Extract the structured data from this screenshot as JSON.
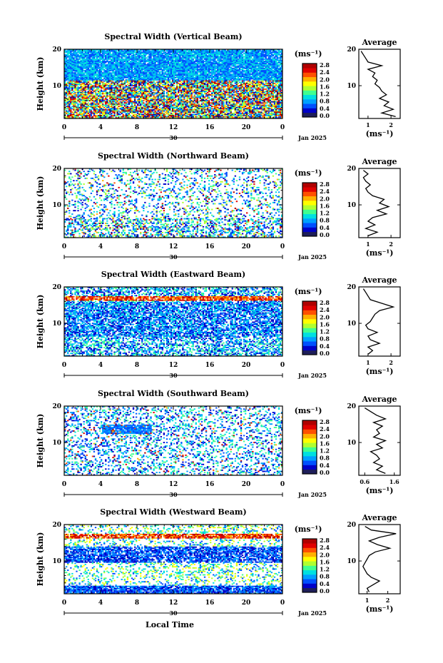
{
  "x_axis_label": "Local Time",
  "date_label": "Jan 2025",
  "day_label": "30",
  "colorbar_unit": "(ms⁻¹)",
  "colorbar_ticks": [
    "0.0",
    "0.4",
    "0.8",
    "1.2",
    "1.6",
    "2.0",
    "2.4",
    "2.8"
  ],
  "colorbar_colors": [
    "#1e1e5a",
    "#0000c8",
    "#0050ff",
    "#00a0ff",
    "#00e0e0",
    "#40ff90",
    "#b0ff30",
    "#ffff00",
    "#ffb000",
    "#ff5000",
    "#e00000",
    "#b00000"
  ],
  "chart_data": [
    {
      "type": "heatmap",
      "title": "Spectral Width (Vertical Beam)",
      "ylabel": "Height (km)",
      "x_ticks": [
        "0",
        "4",
        "8",
        "12",
        "16",
        "20",
        "0"
      ],
      "y_ticks": [
        "20",
        "10"
      ],
      "xlim": [
        0,
        24
      ],
      "ylim": [
        1,
        20
      ],
      "profile": {
        "title": "Average",
        "xlabel": "(ms⁻¹)",
        "x_ticks": [
          "1",
          "2"
        ],
        "xlim": [
          0.6,
          2.4
        ],
        "y_ticks": [
          "20",
          "10"
        ],
        "height": [
          1.5,
          2.5,
          3.5,
          4.5,
          5.5,
          6.5,
          7.5,
          8.5,
          9.5,
          10.5,
          11.5,
          12.5,
          13.5,
          14.5,
          15.5,
          16.5,
          17.5,
          18.5,
          19.5
        ],
        "values": [
          2.2,
          1.6,
          2.1,
          1.7,
          1.9,
          1.5,
          1.8,
          1.6,
          1.5,
          1.3,
          1.4,
          1.2,
          1.3,
          1.0,
          1.6,
          1.0,
          0.9,
          0.8,
          0.7
        ]
      }
    },
    {
      "type": "heatmap",
      "title": "Spectral Width (Northward Beam)",
      "ylabel": "Height (km)",
      "x_ticks": [
        "0",
        "4",
        "8",
        "12",
        "16",
        "20",
        "0"
      ],
      "y_ticks": [
        "20",
        "10"
      ],
      "xlim": [
        0,
        24
      ],
      "ylim": [
        1,
        20
      ],
      "profile": {
        "title": "Average",
        "xlabel": "(ms⁻¹)",
        "x_ticks": [
          "1",
          "2"
        ],
        "xlim": [
          0.6,
          2.4
        ],
        "y_ticks": [
          "20",
          "10"
        ],
        "height": [
          1.5,
          2.5,
          3.5,
          4.5,
          5.5,
          6.5,
          7.5,
          8.5,
          9.5,
          10.5,
          11.5,
          12.5,
          13.5,
          14.5,
          15.5,
          16.5,
          17.5,
          18.5,
          19.5
        ],
        "values": [
          1.0,
          1.4,
          0.9,
          1.3,
          1.0,
          1.2,
          1.8,
          1.4,
          1.9,
          1.5,
          1.7,
          1.2,
          1.0,
          0.9,
          1.1,
          0.9,
          0.8,
          1.0,
          0.8
        ]
      }
    },
    {
      "type": "heatmap",
      "title": "Spectral Width (Eastward Beam)",
      "ylabel": "Height (km)",
      "x_ticks": [
        "0",
        "4",
        "8",
        "12",
        "16",
        "20",
        "0"
      ],
      "y_ticks": [
        "20",
        "10"
      ],
      "xlim": [
        0,
        24
      ],
      "ylim": [
        1,
        20
      ],
      "profile": {
        "title": "Average",
        "xlabel": "(ms⁻¹)",
        "x_ticks": [
          "1",
          "2"
        ],
        "xlim": [
          0.6,
          2.4
        ],
        "y_ticks": [
          "20",
          "10"
        ],
        "height": [
          1.5,
          2.5,
          3.5,
          4.5,
          5.5,
          6.5,
          7.5,
          8.5,
          9.5,
          10.5,
          11.5,
          12.5,
          13.5,
          14.5,
          15.5,
          16.5,
          17.5,
          18.5,
          19.5
        ],
        "values": [
          1.0,
          1.2,
          1.0,
          1.5,
          1.1,
          1.0,
          1.4,
          1.0,
          0.9,
          1.1,
          1.2,
          1.3,
          1.5,
          2.1,
          1.6,
          1.1,
          1.0,
          0.9,
          0.8
        ]
      }
    },
    {
      "type": "heatmap",
      "title": "Spectral Width (Southward Beam)",
      "ylabel": "Height (km)",
      "x_ticks": [
        "0",
        "4",
        "8",
        "12",
        "16",
        "20",
        "0"
      ],
      "y_ticks": [
        "20",
        "10"
      ],
      "xlim": [
        0,
        24
      ],
      "ylim": [
        1,
        20
      ],
      "profile": {
        "title": "Average",
        "xlabel": "(ms⁻¹)",
        "x_ticks": [
          "0.6",
          "1.6"
        ],
        "xlim": [
          0.4,
          1.8
        ],
        "y_ticks": [
          "20",
          "10"
        ],
        "height": [
          1.5,
          2.5,
          3.5,
          4.5,
          5.5,
          6.5,
          7.5,
          8.5,
          9.5,
          10.5,
          11.5,
          12.5,
          13.5,
          14.5,
          15.5,
          16.5,
          17.5,
          18.5,
          19.5
        ],
        "values": [
          1.3,
          1.0,
          1.2,
          0.9,
          1.1,
          1.0,
          0.8,
          1.2,
          1.0,
          1.3,
          0.9,
          1.1,
          1.0,
          1.2,
          0.9,
          1.3,
          1.0,
          0.8,
          0.6
        ]
      }
    },
    {
      "type": "heatmap",
      "title": "Spectral Width (Westward Beam)",
      "ylabel": "Height (km)",
      "x_ticks": [
        "0",
        "4",
        "8",
        "12",
        "16",
        "20",
        "0"
      ],
      "y_ticks": [
        "20",
        "10"
      ],
      "xlim": [
        0,
        24
      ],
      "ylim": [
        1,
        20
      ],
      "profile": {
        "title": "Average",
        "xlabel": "(ms⁻¹)",
        "x_ticks": [
          "1",
          "2"
        ],
        "xlim": [
          0.6,
          2.6
        ],
        "y_ticks": [
          "20",
          "10"
        ],
        "height": [
          1.5,
          2.5,
          3.5,
          4.5,
          5.5,
          6.5,
          7.5,
          8.5,
          9.5,
          10.5,
          11.5,
          12.5,
          13.5,
          14.5,
          15.5,
          16.5,
          17.5,
          18.5,
          19.5
        ],
        "values": [
          1.1,
          1.0,
          1.3,
          1.6,
          1.2,
          1.0,
          0.9,
          0.8,
          0.9,
          1.0,
          1.1,
          1.4,
          2.1,
          1.5,
          1.1,
          1.6,
          2.4,
          1.2,
          0.9
        ]
      }
    }
  ]
}
